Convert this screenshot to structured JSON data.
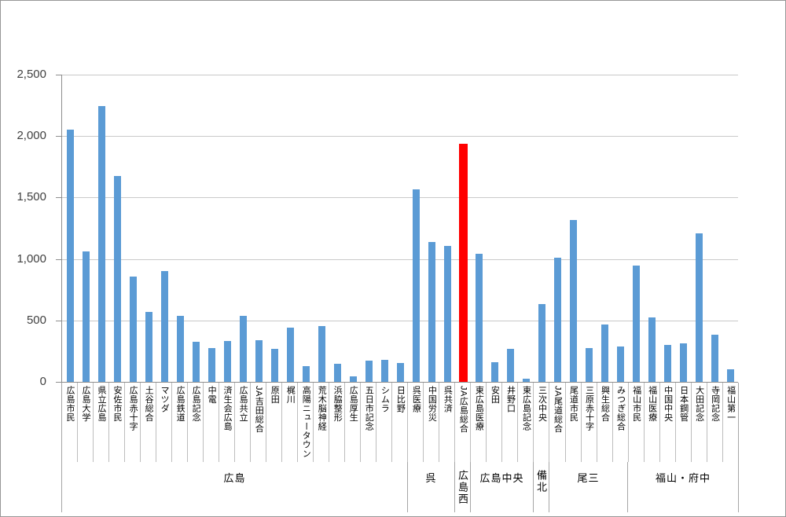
{
  "chart_data": {
    "type": "bar",
    "title": "",
    "xlabel": "",
    "ylabel": "",
    "ylim": [
      0,
      2500
    ],
    "ytick_interval": 500,
    "yticks": [
      {
        "value": 0,
        "label": "0"
      },
      {
        "value": 500,
        "label": "500"
      },
      {
        "value": 1000,
        "label": "1,000"
      },
      {
        "value": 1500,
        "label": "1,500"
      },
      {
        "value": 2000,
        "label": "2,000"
      },
      {
        "value": 2500,
        "label": "2,500"
      }
    ],
    "grid": "horizontal",
    "legend": "none",
    "bar_color": "#5b9bd5",
    "highlight_color": "#ff0000",
    "highlight_label": "JA広島総合",
    "groups": [
      {
        "label": "広島",
        "orientation": "horizontal",
        "items": [
          {
            "label": "広島市民",
            "value": 2055
          },
          {
            "label": "広島大学",
            "value": 1060
          },
          {
            "label": "県立広島",
            "value": 2245
          },
          {
            "label": "安佐市民",
            "value": 1675
          },
          {
            "label": "広島赤十字",
            "value": 855
          },
          {
            "label": "土谷総合",
            "value": 570
          },
          {
            "label": "マツダ",
            "value": 905
          },
          {
            "label": "広島鉄道",
            "value": 535
          },
          {
            "label": "広島記念",
            "value": 325
          },
          {
            "label": "中電",
            "value": 275
          },
          {
            "label": "済生会広島",
            "value": 330
          },
          {
            "label": "広島共立",
            "value": 540
          },
          {
            "label": "JA吉田総合",
            "value": 340
          },
          {
            "label": "原田",
            "value": 270
          },
          {
            "label": "梶川",
            "value": 440
          },
          {
            "label": "高陽ニュータウン",
            "value": 125
          },
          {
            "label": "荒木脳神経",
            "value": 455
          },
          {
            "label": "浜脇整形",
            "value": 145
          },
          {
            "label": "広島厚生",
            "value": 45
          },
          {
            "label": "五日市記念",
            "value": 175
          },
          {
            "label": "シムラ",
            "value": 180
          },
          {
            "label": "日比野",
            "value": 155
          }
        ]
      },
      {
        "label": "呉",
        "orientation": "horizontal",
        "items": [
          {
            "label": "呉医療",
            "value": 1570
          },
          {
            "label": "中国労災",
            "value": 1140
          },
          {
            "label": "呉共済",
            "value": 1105
          }
        ]
      },
      {
        "label": "広島西",
        "orientation": "vertical",
        "items": [
          {
            "label": "JA広島総合",
            "value": 1940,
            "highlight": true
          }
        ]
      },
      {
        "label": "広島中央",
        "orientation": "horizontal",
        "items": [
          {
            "label": "東広島医療",
            "value": 1045
          },
          {
            "label": "安田",
            "value": 160
          },
          {
            "label": "井野口",
            "value": 270
          },
          {
            "label": "東広島記念",
            "value": 25
          }
        ]
      },
      {
        "label": "備北",
        "orientation": "vertical",
        "items": [
          {
            "label": "三次中央",
            "value": 635
          }
        ]
      },
      {
        "label": "尾三",
        "orientation": "horizontal",
        "items": [
          {
            "label": "JA尾道総合",
            "value": 1010
          },
          {
            "label": "尾道市民",
            "value": 1315
          },
          {
            "label": "三原赤十字",
            "value": 275
          },
          {
            "label": "興生総合",
            "value": 470
          },
          {
            "label": "みつぎ総合",
            "value": 285
          }
        ]
      },
      {
        "label": "福山・府中",
        "orientation": "horizontal",
        "items": [
          {
            "label": "福山市民",
            "value": 945
          },
          {
            "label": "福山医療",
            "value": 525
          },
          {
            "label": "中国中央",
            "value": 300
          },
          {
            "label": "日本鋼管",
            "value": 315
          },
          {
            "label": "大田記念",
            "value": 1210
          },
          {
            "label": "寺岡記念",
            "value": 385
          },
          {
            "label": "福山第一",
            "value": 105
          }
        ]
      }
    ]
  }
}
